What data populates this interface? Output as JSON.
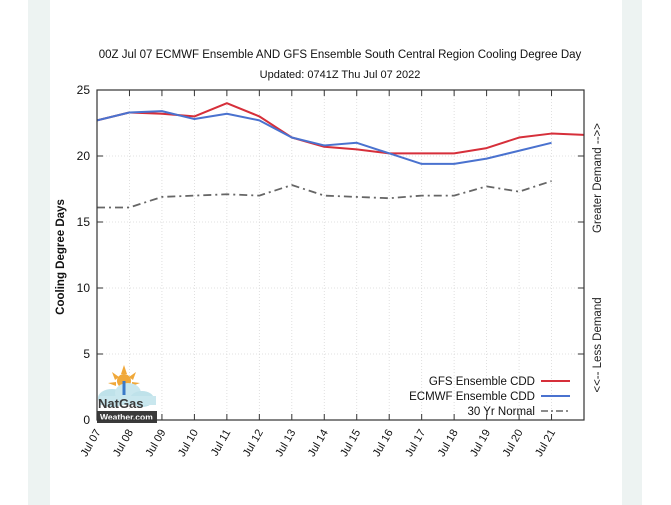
{
  "chart_data": {
    "type": "line",
    "title": "00Z Jul 07 ECMWF Ensemble AND GFS Ensemble South Central Region Cooling Degree Day",
    "subtitle": "Updated: 0741Z Thu Jul 07 2022",
    "ylabel": "Cooling Degree Days",
    "y2label_top": "Greater Demand -->>",
    "y2label_bottom": "<<-- Less Demand",
    "ylim": [
      0,
      25
    ],
    "yticks": [
      0,
      5,
      10,
      15,
      20,
      25
    ],
    "ytick_labels": [
      "0",
      "5",
      "10",
      "15",
      "20",
      "25"
    ],
    "xlim": [
      0,
      15
    ],
    "x_tick_labels": [
      "Jul 07",
      "Jul 08",
      "Jul 09",
      "Jul 10",
      "Jul 11",
      "Jul 12",
      "Jul 13",
      "Jul 14",
      "Jul 15",
      "Jul 16",
      "Jul 17",
      "Jul 18",
      "Jul 19",
      "Jul 20",
      "Jul 21"
    ],
    "grid": true,
    "legend_position": "bottom-right",
    "series": [
      {
        "name": "GFS Ensemble CDD",
        "color": "#d62f3a",
        "style": "solid",
        "x": [
          0,
          1,
          2,
          3,
          4,
          5,
          6,
          7,
          8,
          9,
          10,
          11,
          12,
          13,
          14,
          15
        ],
        "values": [
          22.7,
          23.3,
          23.2,
          23.0,
          24.0,
          23.0,
          21.4,
          20.7,
          20.5,
          20.2,
          20.2,
          20.2,
          20.6,
          21.4,
          21.7,
          21.6
        ]
      },
      {
        "name": "ECMWF Ensemble CDD",
        "color": "#4a72cf",
        "style": "solid",
        "x": [
          0,
          1,
          2,
          3,
          4,
          5,
          6,
          7,
          8,
          9,
          10,
          11,
          12,
          13,
          14
        ],
        "values": [
          22.7,
          23.3,
          23.4,
          22.8,
          23.2,
          22.7,
          21.4,
          20.8,
          21.0,
          20.2,
          19.4,
          19.4,
          19.8,
          20.4,
          21.0
        ]
      },
      {
        "name": "30 Yr Normal",
        "color": "#666666",
        "style": "dash-dot",
        "x": [
          0,
          1,
          2,
          3,
          4,
          5,
          6,
          7,
          8,
          9,
          10,
          11,
          12,
          13,
          14
        ],
        "values": [
          16.1,
          16.1,
          16.9,
          17.0,
          17.1,
          17.0,
          17.8,
          17.0,
          16.9,
          16.8,
          17.0,
          17.0,
          17.7,
          17.3,
          18.1
        ]
      }
    ]
  },
  "logo": {
    "name": "NatGas",
    "domain": "Weather.com"
  },
  "colors": {
    "side_strip": "#edf3f2",
    "axis": "#333333",
    "grid": "#d8d8d8"
  }
}
